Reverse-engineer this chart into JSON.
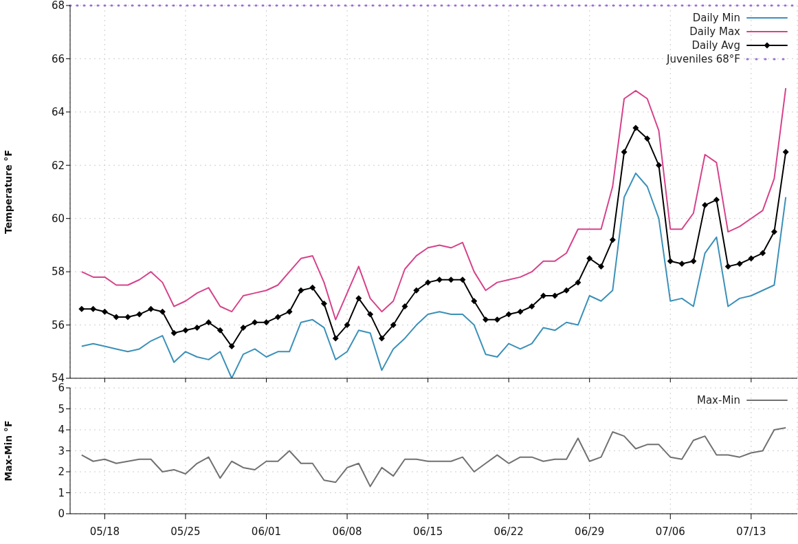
{
  "chart_data": [
    {
      "type": "line",
      "ylabel": "Temperature °F",
      "x": [
        "--05-16",
        "--05-17",
        "--05-18",
        "--05-19",
        "--05-20",
        "--05-21",
        "--05-22",
        "--05-23",
        "--05-24",
        "--05-25",
        "--05-26",
        "--05-27",
        "--05-28",
        "--05-29",
        "--05-30",
        "--05-31",
        "--06-01",
        "--06-02",
        "--06-03",
        "--06-04",
        "--06-05",
        "--06-06",
        "--06-07",
        "--06-08",
        "--06-09",
        "--06-10",
        "--06-11",
        "--06-12",
        "--06-13",
        "--06-14",
        "--06-15",
        "--06-16",
        "--06-17",
        "--06-18",
        "--06-19",
        "--06-20",
        "--06-21",
        "--06-22",
        "--06-23",
        "--06-24",
        "--06-25",
        "--06-26",
        "--06-27",
        "--06-28",
        "--06-29",
        "--06-30",
        "--07-01",
        "--07-02",
        "--07-03",
        "--07-04",
        "--07-05",
        "--07-06",
        "--07-07",
        "--07-08",
        "--07-09",
        "--07-10",
        "--07-11",
        "--07-12",
        "--07-13",
        "--07-14",
        "--07-15",
        "--07-16"
      ],
      "series": [
        {
          "name": "Daily Min",
          "color": "#3a90b8",
          "values": [
            55.2,
            55.3,
            55.2,
            55.1,
            55.0,
            55.1,
            55.4,
            55.6,
            54.6,
            55.0,
            54.8,
            54.7,
            55.0,
            54.0,
            54.9,
            55.1,
            54.8,
            55.0,
            55.0,
            56.1,
            56.2,
            55.9,
            54.7,
            55.0,
            55.8,
            55.7,
            54.3,
            55.1,
            55.5,
            56.0,
            56.4,
            56.5,
            56.4,
            56.4,
            56.0,
            54.9,
            54.8,
            55.3,
            55.1,
            55.3,
            55.9,
            55.8,
            56.1,
            56.0,
            57.1,
            56.9,
            57.3,
            60.8,
            61.7,
            61.2,
            60.0,
            56.9,
            57.0,
            56.7,
            58.7,
            59.3,
            56.7,
            57.0,
            57.1,
            57.3,
            57.5,
            60.8
          ]
        },
        {
          "name": "Daily Max",
          "color": "#d6428a",
          "values": [
            58.0,
            57.8,
            57.8,
            57.5,
            57.5,
            57.7,
            58.0,
            57.6,
            56.7,
            56.9,
            57.2,
            57.4,
            56.7,
            56.5,
            57.1,
            57.2,
            57.3,
            57.5,
            58.0,
            58.5,
            58.6,
            57.6,
            56.2,
            57.2,
            58.2,
            57.0,
            56.5,
            56.9,
            58.1,
            58.6,
            58.9,
            59.0,
            58.9,
            59.1,
            58.0,
            57.3,
            57.6,
            57.7,
            57.8,
            58.0,
            58.4,
            58.4,
            58.7,
            59.6,
            59.6,
            59.6,
            61.2,
            64.5,
            64.8,
            64.5,
            63.3,
            59.6,
            59.6,
            60.2,
            62.4,
            62.1,
            59.5,
            59.7,
            60.0,
            60.3,
            61.5,
            64.9
          ]
        },
        {
          "name": "Daily Avg",
          "color": "#000000",
          "marker": "diamond",
          "values": [
            56.6,
            56.6,
            56.5,
            56.3,
            56.3,
            56.4,
            56.6,
            56.5,
            55.7,
            55.8,
            55.9,
            56.1,
            55.8,
            55.2,
            55.9,
            56.1,
            56.1,
            56.3,
            56.5,
            57.3,
            57.4,
            56.8,
            55.5,
            56.0,
            57.0,
            56.4,
            55.5,
            56.0,
            56.7,
            57.3,
            57.6,
            57.7,
            57.7,
            57.7,
            56.9,
            56.2,
            56.2,
            56.4,
            56.5,
            56.7,
            57.1,
            57.1,
            57.3,
            57.6,
            58.5,
            58.2,
            59.2,
            62.5,
            63.4,
            63.0,
            62.0,
            58.4,
            58.3,
            58.4,
            60.5,
            60.7,
            58.2,
            58.3,
            58.5,
            58.7,
            59.5,
            62.5
          ]
        }
      ],
      "ref_lines": [
        {
          "axis": "y",
          "value": 68,
          "label": "Juveniles 68°F",
          "color": "#9b6fd6",
          "line_style": "dotted"
        }
      ],
      "xlim": [
        "--05-15",
        "--07-17"
      ],
      "xticks": [
        {
          "value": "--05-18",
          "label": "05/18"
        },
        {
          "value": "--05-25",
          "label": "05/25"
        },
        {
          "value": "--06-01",
          "label": "06/01"
        },
        {
          "value": "--06-08",
          "label": "06/08"
        },
        {
          "value": "--06-15",
          "label": "06/15"
        },
        {
          "value": "--06-22",
          "label": "06/22"
        },
        {
          "value": "--06-29",
          "label": "06/29"
        },
        {
          "value": "--07-06",
          "label": "07/06"
        },
        {
          "value": "--07-13",
          "label": "07/13"
        }
      ],
      "ylim": [
        54,
        68
      ],
      "yticks": [
        54,
        56,
        58,
        60,
        62,
        64,
        66,
        68
      ],
      "tick_labels": "y",
      "grid": true,
      "legend": "top right",
      "line_style": "solid"
    },
    {
      "type": "line",
      "ylabel": "Max-Min °F",
      "x": [
        "--05-16",
        "--05-17",
        "--05-18",
        "--05-19",
        "--05-20",
        "--05-21",
        "--05-22",
        "--05-23",
        "--05-24",
        "--05-25",
        "--05-26",
        "--05-27",
        "--05-28",
        "--05-29",
        "--05-30",
        "--05-31",
        "--06-01",
        "--06-02",
        "--06-03",
        "--06-04",
        "--06-05",
        "--06-06",
        "--06-07",
        "--06-08",
        "--06-09",
        "--06-10",
        "--06-11",
        "--06-12",
        "--06-13",
        "--06-14",
        "--06-15",
        "--06-16",
        "--06-17",
        "--06-18",
        "--06-19",
        "--06-20",
        "--06-21",
        "--06-22",
        "--06-23",
        "--06-24",
        "--06-25",
        "--06-26",
        "--06-27",
        "--06-28",
        "--06-29",
        "--06-30",
        "--07-01",
        "--07-02",
        "--07-03",
        "--07-04",
        "--07-05",
        "--07-06",
        "--07-07",
        "--07-08",
        "--07-09",
        "--07-10",
        "--07-11",
        "--07-12",
        "--07-13",
        "--07-14",
        "--07-15",
        "--07-16"
      ],
      "series": [
        {
          "name": "Max-Min",
          "color": "#707070",
          "values": [
            2.8,
            2.5,
            2.6,
            2.4,
            2.5,
            2.6,
            2.6,
            2.0,
            2.1,
            1.9,
            2.4,
            2.7,
            1.7,
            2.5,
            2.2,
            2.1,
            2.5,
            2.5,
            3.0,
            2.4,
            2.4,
            1.6,
            1.5,
            2.2,
            2.4,
            1.3,
            2.2,
            1.8,
            2.6,
            2.6,
            2.5,
            2.5,
            2.5,
            2.7,
            2.0,
            2.4,
            2.8,
            2.4,
            2.7,
            2.7,
            2.5,
            2.6,
            2.6,
            3.6,
            2.5,
            2.7,
            3.9,
            3.7,
            3.1,
            3.3,
            3.3,
            2.7,
            2.6,
            3.5,
            3.7,
            2.8,
            2.8,
            2.7,
            2.9,
            3.0,
            4.0,
            4.1
          ]
        }
      ],
      "xlim": [
        "--05-15",
        "--07-17"
      ],
      "xticks": [
        {
          "value": "--05-18",
          "label": "05/18"
        },
        {
          "value": "--05-25",
          "label": "05/25"
        },
        {
          "value": "--06-01",
          "label": "06/01"
        },
        {
          "value": "--06-08",
          "label": "06/08"
        },
        {
          "value": "--06-15",
          "label": "06/15"
        },
        {
          "value": "--06-22",
          "label": "06/22"
        },
        {
          "value": "--06-29",
          "label": "06/29"
        },
        {
          "value": "--07-06",
          "label": "07/06"
        },
        {
          "value": "--07-13",
          "label": "07/13"
        }
      ],
      "ylim": [
        0,
        6
      ],
      "yticks": [
        0,
        1,
        2,
        3,
        4,
        5,
        6
      ],
      "grid": true,
      "legend": "top right",
      "line_style": "solid"
    }
  ]
}
